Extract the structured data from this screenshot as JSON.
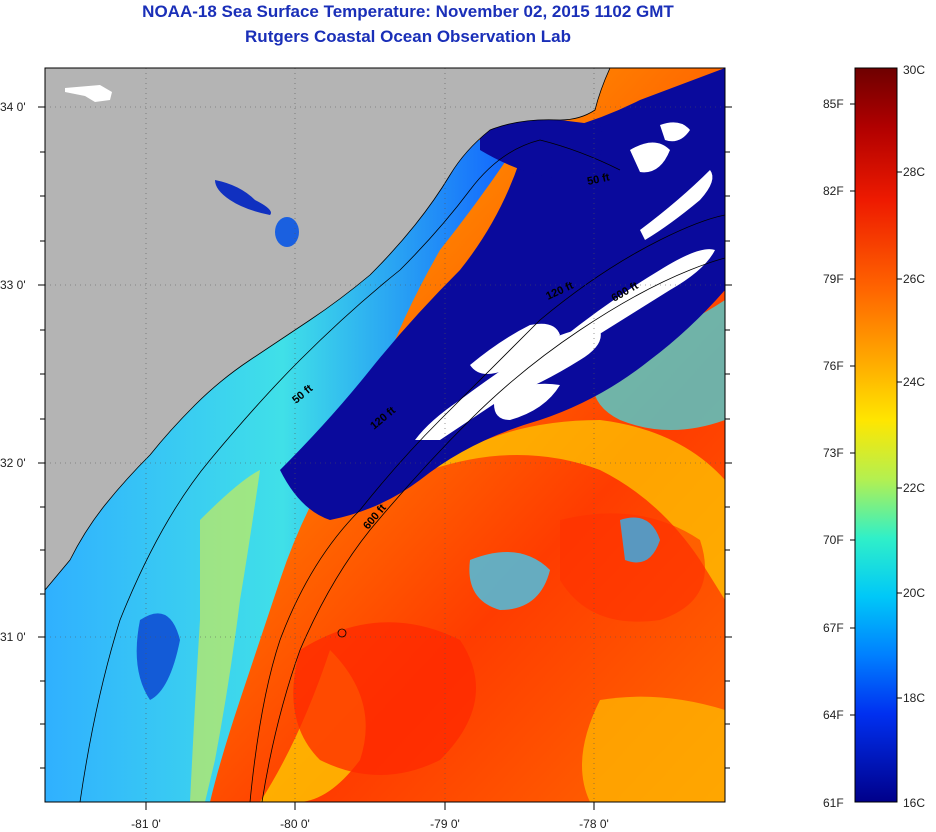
{
  "title": {
    "line1": "NOAA-18 Sea Surface Temperature:  November 02, 2015 1102 GMT",
    "line2": "Rutgers Coastal Ocean Observation Lab"
  },
  "axes": {
    "lat_labels": [
      {
        "value": 34,
        "text": "34 0'"
      },
      {
        "value": 33,
        "text": "33 0'"
      },
      {
        "value": 32,
        "text": "32 0'"
      },
      {
        "value": 31,
        "text": "31 0'"
      }
    ],
    "lon_labels": [
      {
        "value": -81,
        "text": "-81 0'"
      },
      {
        "value": -80,
        "text": "-80 0'"
      },
      {
        "value": -79,
        "text": "-79 0'"
      },
      {
        "value": -78,
        "text": "-78 0'"
      }
    ],
    "lat_range": [
      30.2,
      34.2
    ],
    "lon_range": [
      -81.7,
      -77.2
    ]
  },
  "contours": [
    {
      "text": "50 ft"
    },
    {
      "text": "120 ft"
    },
    {
      "text": "600 ft"
    },
    {
      "text": "50 ft"
    },
    {
      "text": "120 ft"
    },
    {
      "text": "600 ft"
    }
  ],
  "colorbar": {
    "fahrenheit": [
      "85F",
      "82F",
      "79F",
      "76F",
      "73F",
      "70F",
      "67F",
      "64F",
      "61F"
    ],
    "celsius": [
      "30C",
      "28C",
      "26C",
      "24C",
      "22C",
      "20C",
      "18C",
      "16C"
    ],
    "colors": [
      "#6e0000",
      "#c40000",
      "#ff2a00",
      "#ff7a00",
      "#ffb400",
      "#ffe600",
      "#c8f03c",
      "#4ef0b4",
      "#00dcf0",
      "#0096ff",
      "#0040ff",
      "#0010d0",
      "#00008c"
    ]
  },
  "colors": {
    "land": "#b4b4b4",
    "cold_water": "#0a0a9c",
    "cloud": "#ffffff",
    "title": "#1a2fb8"
  }
}
